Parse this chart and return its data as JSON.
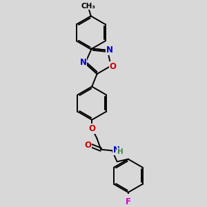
{
  "bg_color": "#d8d8d8",
  "bond_color": "#000000",
  "bond_width": 1.4,
  "atom_colors": {
    "N": "#0000cc",
    "O": "#cc0000",
    "F": "#cc00cc",
    "H": "#448844",
    "C": "#000000"
  },
  "font_size_atom": 8.5
}
